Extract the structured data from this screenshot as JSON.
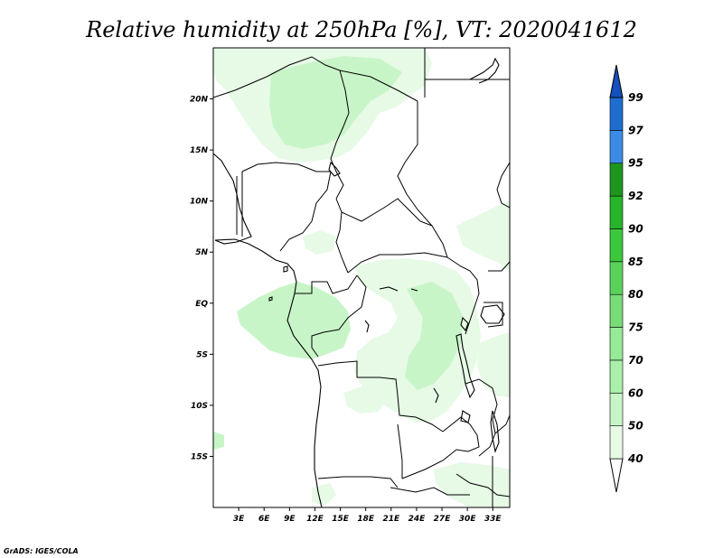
{
  "title": "Relative humidity at 250hPa [%], VT: 2020041612",
  "credit": "GrADS: IGES/COLA",
  "map": {
    "lon_range": [
      0,
      35
    ],
    "lat_range": [
      -20,
      25
    ],
    "x_ticks": [
      "3E",
      "6E",
      "9E",
      "12E",
      "15E",
      "18E",
      "21E",
      "24E",
      "27E",
      "30E",
      "33E"
    ],
    "y_ticks": [
      "20N",
      "15N",
      "10N",
      "5N",
      "EQ",
      "5S",
      "10S",
      "15S"
    ],
    "variable": "relative humidity",
    "level": "250hPa",
    "units": "%"
  },
  "colorbar": {
    "labels": [
      "40",
      "50",
      "60",
      "70",
      "75",
      "80",
      "85",
      "90",
      "92",
      "95",
      "97",
      "99"
    ],
    "colors": [
      "#ffffff",
      "#e6fae6",
      "#c8f5c8",
      "#aaf0aa",
      "#96eb96",
      "#78dc78",
      "#5ad25a",
      "#3cc83c",
      "#28b428",
      "#1e961e",
      "#3c8ce6",
      "#1e6ed2",
      "#1450be"
    ]
  },
  "humidity_colors": {
    "level_50": "#e6fae6",
    "level_60": "#c8f5c8",
    "level_70": "#aaf0aa"
  }
}
